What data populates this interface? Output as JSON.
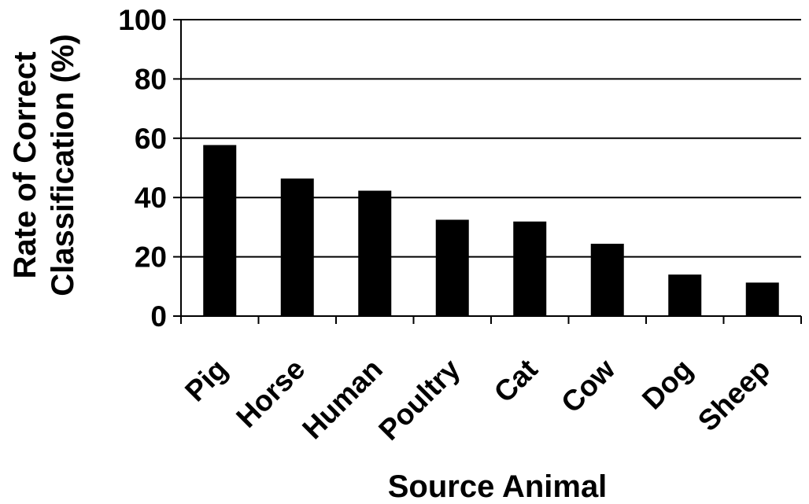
{
  "chart_data": {
    "type": "bar",
    "categories": [
      "Pig",
      "Horse",
      "Human",
      "Poultry",
      "Cat",
      "Cow",
      "Dog",
      "Sheep"
    ],
    "values": [
      57.7,
      46.4,
      42.3,
      32.5,
      31.9,
      24.4,
      14.0,
      11.3
    ],
    "title": "",
    "xlabel": "Source Animal",
    "ylabel_lines": [
      "Rate of Correct",
      "Classification (%)"
    ],
    "ylim": [
      0,
      100
    ],
    "yticks": [
      "0",
      "20",
      "40",
      "60",
      "80",
      "100"
    ],
    "grid": true,
    "bar_color": "#000000"
  }
}
